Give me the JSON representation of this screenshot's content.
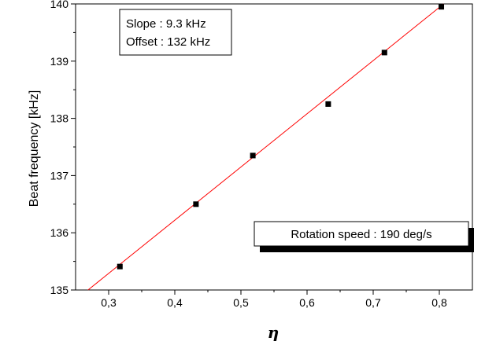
{
  "chart_data": {
    "type": "scatter",
    "xlabel": "η",
    "ylabel": "Beat frequency [kHz]",
    "xlim": [
      0.25,
      0.85
    ],
    "ylim": [
      135,
      140
    ],
    "x_ticks": [
      "0,3",
      "0,4",
      "0,5",
      "0,6",
      "0,7",
      "0,8"
    ],
    "x_tick_values": [
      0.3,
      0.4,
      0.5,
      0.6,
      0.7,
      0.8
    ],
    "y_ticks": [
      "135",
      "136",
      "137",
      "138",
      "139",
      "140"
    ],
    "y_tick_values": [
      135,
      136,
      137,
      138,
      139,
      140
    ],
    "series": [
      {
        "x": [
          0.317,
          0.432,
          0.518,
          0.632,
          0.717,
          0.803
        ],
        "y": [
          135.41,
          136.5,
          137.35,
          138.25,
          139.15,
          139.95
        ],
        "marker": "square",
        "color": "#000000"
      }
    ],
    "fit": {
      "type": "linear",
      "slope": 9.3,
      "intercept": 132.5,
      "color": "#ff0000"
    },
    "annotations": {
      "fit_box": [
        "Slope : 9.3 kHz",
        "Offset : 132 kHz"
      ],
      "speed_box": "Rotation speed : 190 deg/s"
    },
    "grid": false
  }
}
